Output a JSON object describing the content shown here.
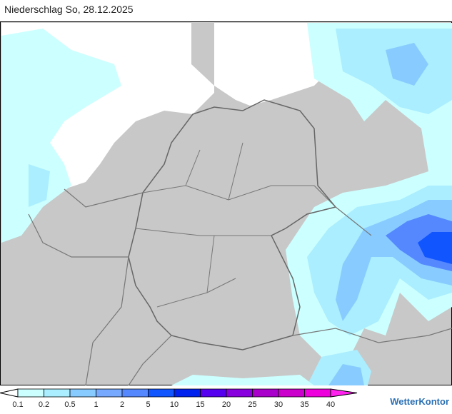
{
  "title": "Niederschlag So, 28.12.2025",
  "legend": {
    "ticks": [
      0.1,
      0.2,
      0.5,
      1,
      2,
      5,
      10,
      15,
      20,
      25,
      30,
      35,
      40
    ],
    "colors": [
      "#ffffff",
      "#ccffff",
      "#aaeeff",
      "#88ccff",
      "#77aaff",
      "#5588ff",
      "#1155ff",
      "#0022ee",
      "#5500ee",
      "#8800dd",
      "#aa00cc",
      "#cc00cc",
      "#ee00dd",
      "#ff22ee"
    ]
  },
  "brand": "WetterKontor"
}
